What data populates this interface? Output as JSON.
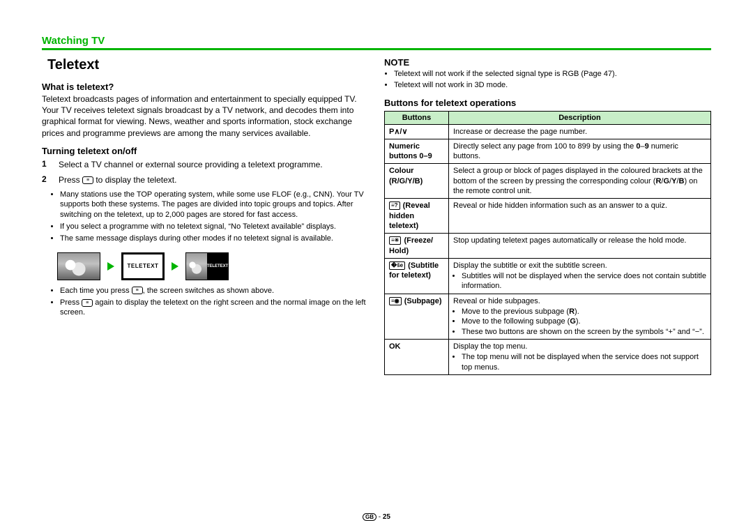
{
  "header": {
    "section": "Watching TV"
  },
  "title": "Teletext",
  "what_head": "What is teletext?",
  "what_body": "Teletext broadcasts pages of information and entertainment to specially equipped TV. Your TV receives teletext signals broadcast by a TV network, and decodes them into graphical format for viewing. News, weather and sports information, stock exchange prices and programme previews are among the many services available.",
  "turn_head": "Turning teletext on/off",
  "step1": "Select a TV channel or external source providing a teletext programme.",
  "step2_a": "Press ",
  "step2_b": " to display the teletext.",
  "s2_bul1": "Many stations use the TOP operating system, while some use FLOF (e.g., CNN). Your TV supports both these systems. The pages are divided into topic groups and topics. After switching on the teletext, up to 2,000 pages are stored for fast access.",
  "s2_bul2": "If you select a programme with no teletext signal, “No Teletext available” displays.",
  "s2_bul3": "The same message displays during other modes if no teletext signal is available.",
  "diag_label1": "TELETEXT",
  "diag_label2": "TELETEXT",
  "s2_bul4a": "Each time you press ",
  "s2_bul4b": ", the screen switches as shown above.",
  "s2_bul5a": "Press ",
  "s2_bul5b": " again to display the teletext on the right screen and the normal image on the left screen.",
  "note_head": "NOTE",
  "note1": "Teletext will not work if the selected signal type is RGB (Page 47).",
  "note2": "Teletext will not work in 3D mode.",
  "btable_head": "Buttons for teletext operations",
  "th_buttons": "Buttons",
  "th_desc": "Description",
  "rows": [
    {
      "b": "P∧/∨",
      "d": "Increase or decrease the page number."
    },
    {
      "b": "Numeric buttons 0–9",
      "d": "Directly select any page from 100 to 899 by using the 0–9 numeric buttons."
    },
    {
      "b": "Colour (R/G/Y/B)",
      "d": "Select a group or block of pages displayed in the coloured brackets at the bottom of the screen by pressing the corresponding colour (R/G/Y/B) on the remote control unit."
    },
    {
      "b": "(Reveal hidden teletext)",
      "d": "Reveal or hide hidden information such as an answer to a quiz."
    },
    {
      "b": "(Freeze/Hold)",
      "d": "Stop updating teletext pages automatically or release the hold mode."
    },
    {
      "b": "(Subtitle for teletext)",
      "d": "Display the subtitle or exit the subtitle screen.",
      "sub": [
        "Subtitles will not be displayed when the service does not contain subtitle information."
      ]
    },
    {
      "b": "(Subpage)",
      "d": "Reveal or hide subpages.",
      "sub": [
        "Move to the previous subpage (R).",
        "Move to the following subpage (G).",
        "These two buttons are shown on the screen by the symbols “+” and “−”."
      ]
    },
    {
      "b": "OK",
      "d": "Display the top menu.",
      "sub": [
        "The top menu will not be displayed when the service does not support top menus."
      ]
    }
  ],
  "footer": {
    "region": "GB",
    "page": "25"
  },
  "colors": {
    "accent": "#00b400",
    "table_header": "#c8eec8"
  }
}
